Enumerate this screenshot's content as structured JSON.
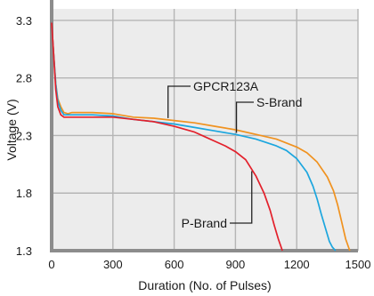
{
  "chart_data": {
    "type": "line",
    "title": "",
    "xlabel": "Duration (No. of Pulses)",
    "ylabel": "Voltage (V)",
    "xlim": [
      0,
      1500
    ],
    "ylim": [
      1.3,
      3.4
    ],
    "xticks": [
      0,
      300,
      600,
      900,
      1200,
      1500
    ],
    "yticks": [
      1.3,
      1.8,
      2.3,
      2.8,
      3.3
    ],
    "ytick_labels": [
      "1.3",
      "1.8",
      "2.3",
      "2.8",
      "3.3"
    ],
    "grid": true,
    "background": "#ececec",
    "series": [
      {
        "name": "GPCR123A",
        "color": "#f0921f",
        "x": [
          0,
          10,
          20,
          30,
          45,
          60,
          80,
          100,
          150,
          200,
          300,
          400,
          500,
          600,
          700,
          800,
          900,
          1000,
          1100,
          1200,
          1250,
          1300,
          1350,
          1380,
          1400,
          1420,
          1440,
          1460
        ],
        "y": [
          3.28,
          3.0,
          2.75,
          2.62,
          2.55,
          2.5,
          2.49,
          2.5,
          2.5,
          2.5,
          2.49,
          2.46,
          2.45,
          2.43,
          2.41,
          2.38,
          2.35,
          2.31,
          2.27,
          2.2,
          2.15,
          2.07,
          1.94,
          1.82,
          1.7,
          1.55,
          1.4,
          1.3
        ]
      },
      {
        "name": "S-Brand",
        "color": "#1ca6de",
        "x": [
          0,
          10,
          20,
          30,
          45,
          60,
          80,
          100,
          150,
          200,
          300,
          400,
          500,
          600,
          700,
          800,
          900,
          1000,
          1100,
          1150,
          1200,
          1250,
          1280,
          1300,
          1320,
          1340,
          1360,
          1375,
          1390
        ],
        "y": [
          3.28,
          3.0,
          2.75,
          2.6,
          2.52,
          2.48,
          2.48,
          2.48,
          2.48,
          2.48,
          2.47,
          2.44,
          2.42,
          2.4,
          2.37,
          2.34,
          2.31,
          2.27,
          2.21,
          2.17,
          2.1,
          1.98,
          1.86,
          1.75,
          1.62,
          1.5,
          1.38,
          1.33,
          1.3
        ]
      },
      {
        "name": "P-Brand",
        "color": "#e3202b",
        "x": [
          0,
          10,
          20,
          30,
          45,
          60,
          80,
          100,
          150,
          200,
          300,
          400,
          500,
          600,
          700,
          750,
          800,
          850,
          900,
          950,
          1000,
          1040,
          1070,
          1090,
          1110,
          1130
        ],
        "y": [
          3.28,
          3.0,
          2.7,
          2.55,
          2.48,
          2.46,
          2.46,
          2.46,
          2.46,
          2.46,
          2.46,
          2.44,
          2.42,
          2.38,
          2.33,
          2.29,
          2.25,
          2.21,
          2.16,
          2.09,
          1.95,
          1.8,
          1.65,
          1.52,
          1.4,
          1.3
        ]
      }
    ],
    "annotations": [
      {
        "series": "GPCR123A",
        "text": "GPCR123A"
      },
      {
        "series": "S-Brand",
        "text": "S-Brand"
      },
      {
        "series": "P-Brand",
        "text": "P-Brand"
      }
    ]
  }
}
